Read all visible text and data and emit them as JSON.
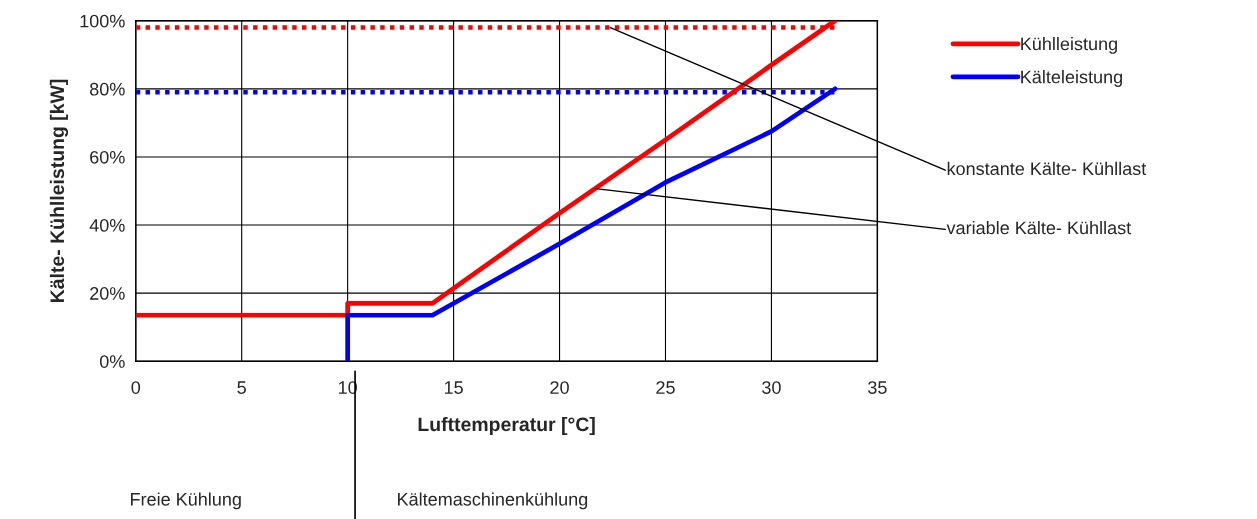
{
  "chart_data": {
    "type": "line",
    "xlabel": "Lufttemperatur [°C]",
    "ylabel": "Kälte- Kühlleistung [kW]",
    "series": [
      {
        "name": "Kühlleistung",
        "color": "#ff0000",
        "x": [
          0,
          10,
          10,
          14,
          20,
          25,
          30,
          33
        ],
        "values": [
          13.5,
          13.5,
          17,
          17,
          43.5,
          65,
          87,
          100
        ]
      },
      {
        "name": "Kälteleistung",
        "color": "#0000ff",
        "x": [
          10,
          10,
          14,
          20,
          25,
          30,
          33
        ],
        "values": [
          0,
          13.5,
          13.5,
          34.5,
          52.5,
          67.5,
          80
        ]
      },
      {
        "color": "#ff0000",
        "x": [
          0,
          33
        ],
        "values": [
          98,
          98
        ],
        "line_style": "dotted"
      },
      {
        "color": "#0000ff",
        "x": [
          0,
          33
        ],
        "values": [
          79,
          79
        ],
        "line_style": "dotted"
      }
    ],
    "xlim": [
      0,
      35
    ],
    "xticks": [
      0,
      5,
      10,
      15,
      20,
      25,
      30,
      35
    ],
    "ylim": [
      0,
      100
    ],
    "yticks": [
      {
        "value": 0,
        "label": "0%"
      },
      {
        "value": 20,
        "label": "20%"
      },
      {
        "value": 40,
        "label": "40%"
      },
      {
        "value": 60,
        "label": "60%"
      },
      {
        "value": 80,
        "label": "80%"
      },
      {
        "value": 100,
        "label": "100%"
      }
    ],
    "annotations": [
      {
        "text": "konstante Kälte- Kühllast",
        "x": 22.4,
        "y": 98
      },
      {
        "text": "variable Kälte- Kühllast",
        "x": 21.7,
        "y": 50.7
      },
      "Freie Kühlung",
      "Kältemaschinenkühlung"
    ],
    "grid": true,
    "legend": "top right",
    "marker": "none",
    "line_style": "solid"
  }
}
